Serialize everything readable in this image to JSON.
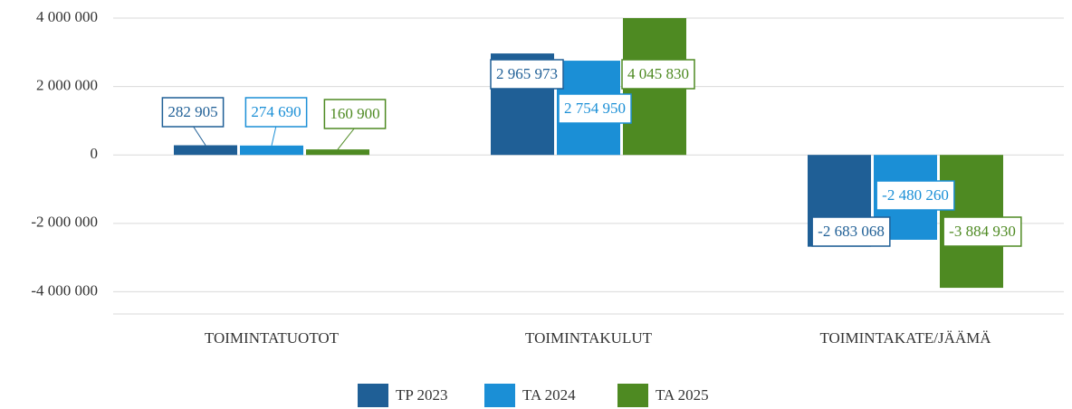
{
  "chart_data": {
    "type": "bar",
    "categories": [
      "TOIMINTATUOTOT",
      "TOIMINTAKULUT",
      "TOIMINTAKATE/JÄÄMÄ"
    ],
    "series": [
      {
        "name": "TP 2023",
        "color": "#1f5f96",
        "values": [
          282905,
          2965973,
          -2683068
        ],
        "value_labels": [
          "282 905",
          "2 965 973",
          "-2 683 068"
        ]
      },
      {
        "name": "TA 2024",
        "color": "#1b8fd6",
        "values": [
          274690,
          2754950,
          -2480260
        ],
        "value_labels": [
          "274 690",
          "2 754 950",
          "-2 480 260"
        ]
      },
      {
        "name": "TA 2025",
        "color": "#4e8a22",
        "values": [
          160900,
          4045830,
          -3884930
        ],
        "value_labels": [
          "160 900",
          "4 045 830",
          "-3 884 930"
        ]
      }
    ],
    "ylim": [
      -4650000,
      4000000
    ],
    "yticks": [
      {
        "value": -4000000,
        "label": "-4 000 000"
      },
      {
        "value": -2000000,
        "label": "-2 000 000"
      },
      0,
      {
        "value": 2000000,
        "label": "2 000 000"
      },
      {
        "value": 4000000,
        "label": "4 000 000"
      }
    ],
    "grid": true,
    "legend": "bottom"
  }
}
